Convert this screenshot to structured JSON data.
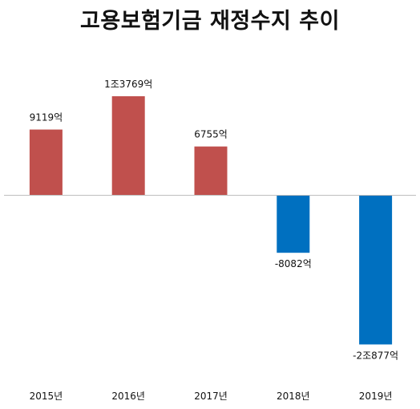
{
  "chart_data": {
    "type": "bar",
    "title": "고용보험기금 재정수지 추이",
    "categories": [
      "2015년",
      "2016년",
      "2017년",
      "2018년",
      "2019년"
    ],
    "values": [
      9119,
      13769,
      6755,
      -8082,
      -20877
    ],
    "value_labels": [
      "9119억",
      "1조3769억",
      "6755억",
      "-8082억",
      "-2조877억"
    ],
    "unit": "억",
    "colors": {
      "positive": "#c0504d",
      "negative": "#0070c0"
    },
    "ylim": [
      -22000,
      14500
    ],
    "grid": false,
    "legend": "none"
  }
}
